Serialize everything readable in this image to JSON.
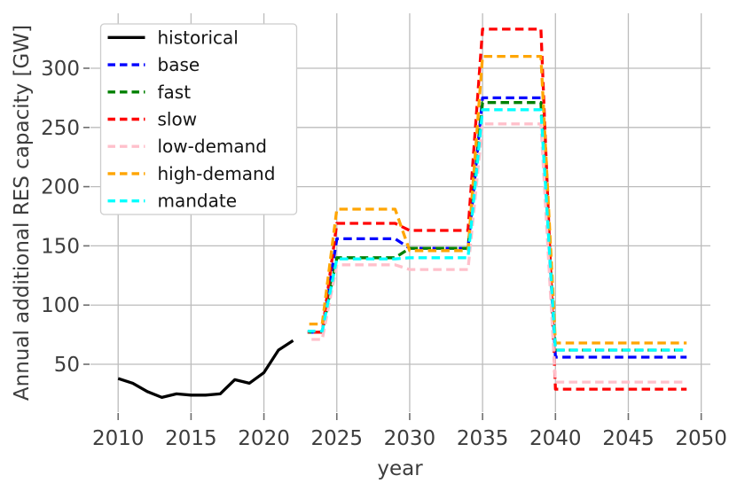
{
  "chart_data": {
    "type": "line",
    "title": "",
    "xlabel": "year",
    "ylabel": "Annual additional RES capacity [GW]",
    "xlim": [
      2008.1,
      2050.63
    ],
    "ylim": [
      9.6,
      346.4
    ],
    "xticks": [
      2010,
      2015,
      2020,
      2025,
      2030,
      2035,
      2040,
      2045,
      2050
    ],
    "yticks": [
      50,
      100,
      150,
      200,
      250,
      300
    ],
    "grid": true,
    "legend_position": "upper-left",
    "grid_color": "#bcbcbc",
    "tick_color": "#6e6e6e",
    "text_color": "#3d3d3d",
    "series": [
      {
        "name": "historical",
        "color": "#000000",
        "style": "solid",
        "x": [
          2010,
          2011,
          2012,
          2013,
          2014,
          2015,
          2016,
          2017,
          2018,
          2019,
          2020,
          2021,
          2022
        ],
        "values": [
          38,
          34,
          27,
          22,
          25,
          24,
          24,
          25,
          37,
          34,
          43,
          62,
          70
        ]
      },
      {
        "name": "base",
        "color": "#0000ff",
        "style": "dashed",
        "x": [
          2023,
          2024,
          2025,
          2029,
          2030,
          2034,
          2035,
          2039,
          2040,
          2049
        ],
        "values": [
          77,
          77,
          156,
          156,
          148,
          148,
          275,
          275,
          56,
          56
        ]
      },
      {
        "name": "fast",
        "color": "#008000",
        "style": "dashed",
        "x": [
          2023,
          2024,
          2025,
          2029,
          2030,
          2034,
          2035,
          2039,
          2040,
          2049
        ],
        "values": [
          77,
          77,
          140,
          140,
          148,
          148,
          271,
          271,
          62,
          62
        ]
      },
      {
        "name": "slow",
        "color": "#ff0000",
        "style": "dashed",
        "x": [
          2023,
          2024,
          2025,
          2029,
          2030,
          2034,
          2035,
          2039,
          2040,
          2049
        ],
        "values": [
          77,
          77,
          169,
          169,
          163,
          163,
          333,
          333,
          29,
          29
        ]
      },
      {
        "name": "low-demand",
        "color": "#ffc0cb",
        "style": "dashed",
        "x": [
          2023,
          2024,
          2025,
          2029,
          2030,
          2034,
          2035,
          2039,
          2040,
          2049
        ],
        "values": [
          71,
          71,
          134,
          134,
          130,
          130,
          253,
          253,
          35,
          35
        ]
      },
      {
        "name": "high-demand",
        "color": "#ffa500",
        "style": "dashed",
        "x": [
          2023,
          2024,
          2025,
          2029,
          2030,
          2034,
          2035,
          2039,
          2040,
          2049
        ],
        "values": [
          84,
          84,
          181,
          181,
          146,
          146,
          310,
          310,
          68,
          68
        ]
      },
      {
        "name": "mandate",
        "color": "#00ffff",
        "style": "dashed",
        "x": [
          2023,
          2024,
          2025,
          2029,
          2030,
          2034,
          2035,
          2039,
          2040,
          2049
        ],
        "values": [
          78,
          78,
          139,
          139,
          140,
          140,
          265,
          265,
          62,
          62
        ]
      }
    ]
  }
}
